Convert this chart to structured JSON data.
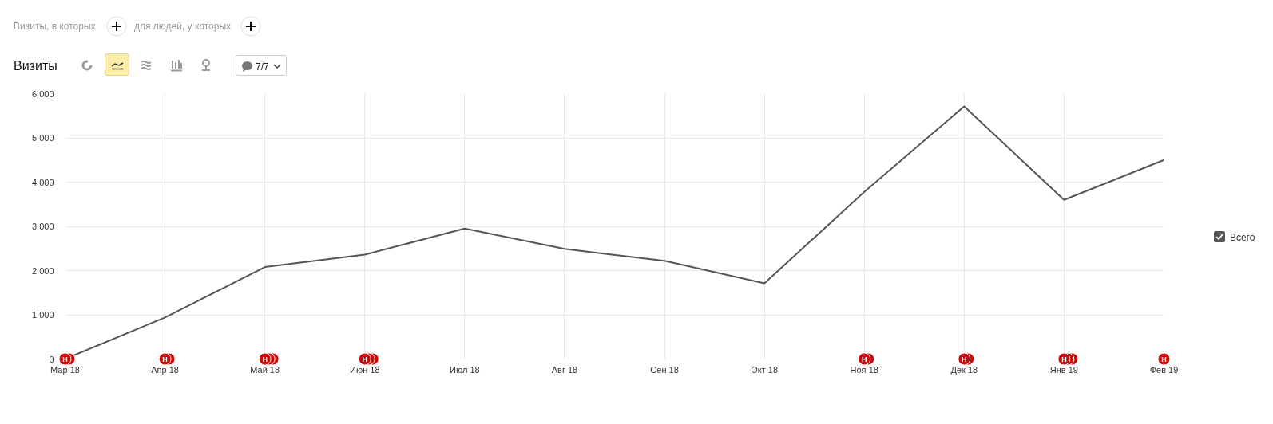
{
  "chart_data": {
    "type": "line",
    "title": "Визиты",
    "categories": [
      "Мар 18",
      "Апр 18",
      "Май 18",
      "Июн 18",
      "Июл 18",
      "Авг 18",
      "Сен 18",
      "Окт 18",
      "Ноя 18",
      "Дек 18",
      "Янв 19",
      "Фев 19"
    ],
    "series": [
      {
        "name": "Всего",
        "color": "#555555",
        "values": [
          0,
          940,
          2080,
          2360,
          2950,
          2490,
          2220,
          1710,
          3780,
          5710,
          3600,
          4500
        ]
      },
      {
        "type": "scatter",
        "marker": "circle",
        "color": "#cc0a0a",
        "x": [
          "Мар 18",
          "Мар 18",
          "Апр 18",
          "Апр 18",
          "Май 18",
          "Май 18",
          "Май 18",
          "Июн 18",
          "Июн 18",
          "Июн 18",
          "Ноя 18",
          "Ноя 18",
          "Дек 18",
          "Дек 18",
          "Янв 19",
          "Янв 19",
          "Янв 19",
          "Фев 19"
        ],
        "values": [
          0,
          0,
          0,
          0,
          0,
          0,
          0,
          0,
          0,
          0,
          0,
          0,
          0,
          0,
          0,
          0,
          0,
          0
        ],
        "value_labels": [
          "Н",
          null,
          "Н",
          null,
          "Н",
          null,
          null,
          "Н",
          null,
          null,
          "Н",
          null,
          "Н",
          null,
          "Н",
          null,
          null,
          "Н"
        ]
      }
    ],
    "ylim": [
      0,
      6000
    ],
    "yticks": [
      0,
      {
        "value": 1000,
        "label": "1 000"
      },
      {
        "value": 2000,
        "label": "2 000"
      },
      {
        "value": 3000,
        "label": "3 000"
      },
      {
        "value": 4000,
        "label": "4 000"
      },
      {
        "value": 5000,
        "label": "5 000"
      },
      {
        "value": 6000,
        "label": "6 000"
      }
    ],
    "grid": true,
    "legend": "right",
    "annotations": [
      "Визиты, в которых",
      "для людей, у которых",
      "7/7"
    ]
  }
}
